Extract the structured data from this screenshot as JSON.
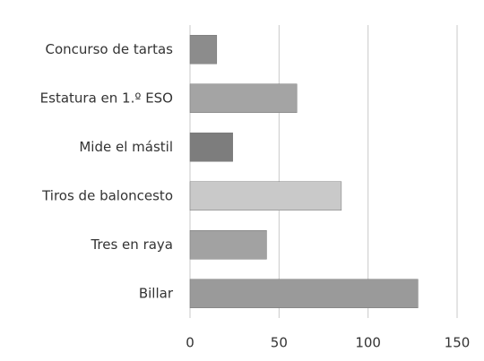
{
  "chart_data": {
    "type": "barh",
    "categories": [
      "Concurso de tartas",
      "Estatura en 1.º ESO",
      "Mide el mástil",
      "Tiros de baloncesto",
      "Tres en raya",
      "Billar"
    ],
    "values": [
      15,
      60,
      24,
      85,
      43,
      128
    ],
    "colors": [
      "#8c8c8c",
      "#a4a4a4",
      "#7d7d7d",
      "#c9c9c9",
      "#a2a2a2",
      "#9a9a9a"
    ],
    "xlim": [
      0,
      150
    ],
    "xticks": [
      0,
      50,
      100,
      150
    ],
    "grid": true
  }
}
